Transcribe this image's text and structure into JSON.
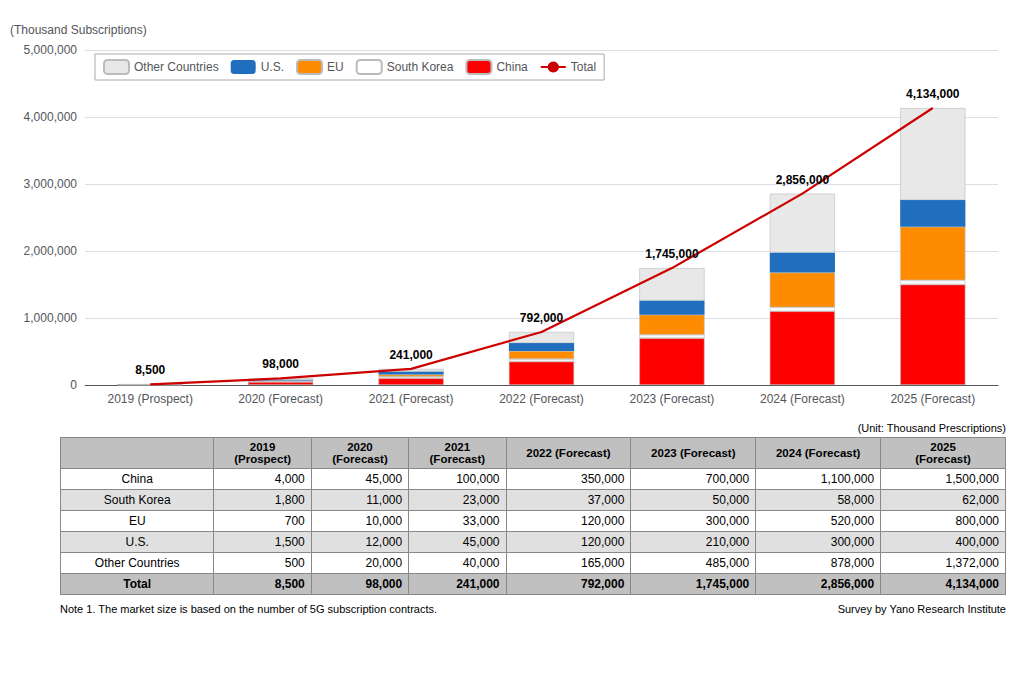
{
  "chart_data": {
    "type": "bar",
    "stacked": true,
    "ylabel": "(Thousand Subscriptions)",
    "categories": [
      "2019 (Prospect)",
      "2020 (Forecast)",
      "2021 (Forecast)",
      "2022 (Forecast)",
      "2023 (Forecast)",
      "2024 (Forecast)",
      "2025 (Forecast)"
    ],
    "series": [
      {
        "name": "China",
        "color": "#FF0000",
        "values": [
          4000,
          45000,
          100000,
          350000,
          700000,
          1100000,
          1500000
        ]
      },
      {
        "name": "South Korea",
        "color": "#FFFFFF",
        "values": [
          1800,
          11000,
          23000,
          37000,
          50000,
          58000,
          62000
        ]
      },
      {
        "name": "EU",
        "color": "#FF8C00",
        "values": [
          700,
          10000,
          33000,
          120000,
          300000,
          520000,
          800000
        ]
      },
      {
        "name": "U.S.",
        "color": "#1F6FBE",
        "values": [
          1500,
          12000,
          45000,
          120000,
          210000,
          300000,
          400000
        ]
      },
      {
        "name": "Other Countries",
        "color": "#E8E8E8",
        "values": [
          500,
          20000,
          40000,
          165000,
          485000,
          878000,
          1372000
        ]
      },
      {
        "name": "Total",
        "type": "line",
        "color": "#CC0000",
        "data_labels": true,
        "values": [
          8500,
          98000,
          241000,
          792000,
          1745000,
          2856000,
          4134000
        ],
        "value_labels": [
          "8,500",
          "98,000",
          "241,000",
          "792,000",
          "1,745,000",
          "2,856,000",
          "4,134,000"
        ]
      }
    ],
    "ylim": [
      0,
      5000000
    ],
    "yticks": [
      0,
      {
        "value": 1000000,
        "label": "1,000,000"
      },
      {
        "value": 2000000,
        "label": "2,000,000"
      },
      {
        "value": 3000000,
        "label": "3,000,000"
      },
      {
        "value": 4000000,
        "label": "4,000,000"
      },
      {
        "value": 5000000,
        "label": "5,000,000"
      }
    ],
    "grid": true,
    "legend": "upper left",
    "table": {
      "unit_label": "(Unit: Thousand Prescriptions)",
      "columns": [
        "2019\n(Prospect)",
        "2020\n(Forecast)",
        "2021\n(Forecast)",
        "2022 (Forecast)",
        "2023 (Forecast)",
        "2024 (Forecast)",
        "2025\n(Forecast)"
      ],
      "rows": [
        "China",
        "South Korea",
        "EU",
        "U.S.",
        "Other Countries",
        "Total"
      ],
      "cells": [
        [
          "4,000",
          "45,000",
          "100,000",
          "350,000",
          "700,000",
          "1,100,000",
          "1,500,000"
        ],
        [
          "1,800",
          "11,000",
          "23,000",
          "37,000",
          "50,000",
          "58,000",
          "62,000"
        ],
        [
          "700",
          "10,000",
          "33,000",
          "120,000",
          "300,000",
          "520,000",
          "800,000"
        ],
        [
          "1,500",
          "12,000",
          "45,000",
          "120,000",
          "210,000",
          "300,000",
          "400,000"
        ],
        [
          "500",
          "20,000",
          "40,000",
          "165,000",
          "485,000",
          "878,000",
          "1,372,000"
        ],
        [
          "8,500",
          "98,000",
          "241,000",
          "792,000",
          "1,745,000",
          "2,856,000",
          "4,134,000"
        ]
      ]
    },
    "note": "Note 1. The market size is based on the number of 5G subscription contracts.",
    "source": "Survey by Yano Research Institute"
  }
}
